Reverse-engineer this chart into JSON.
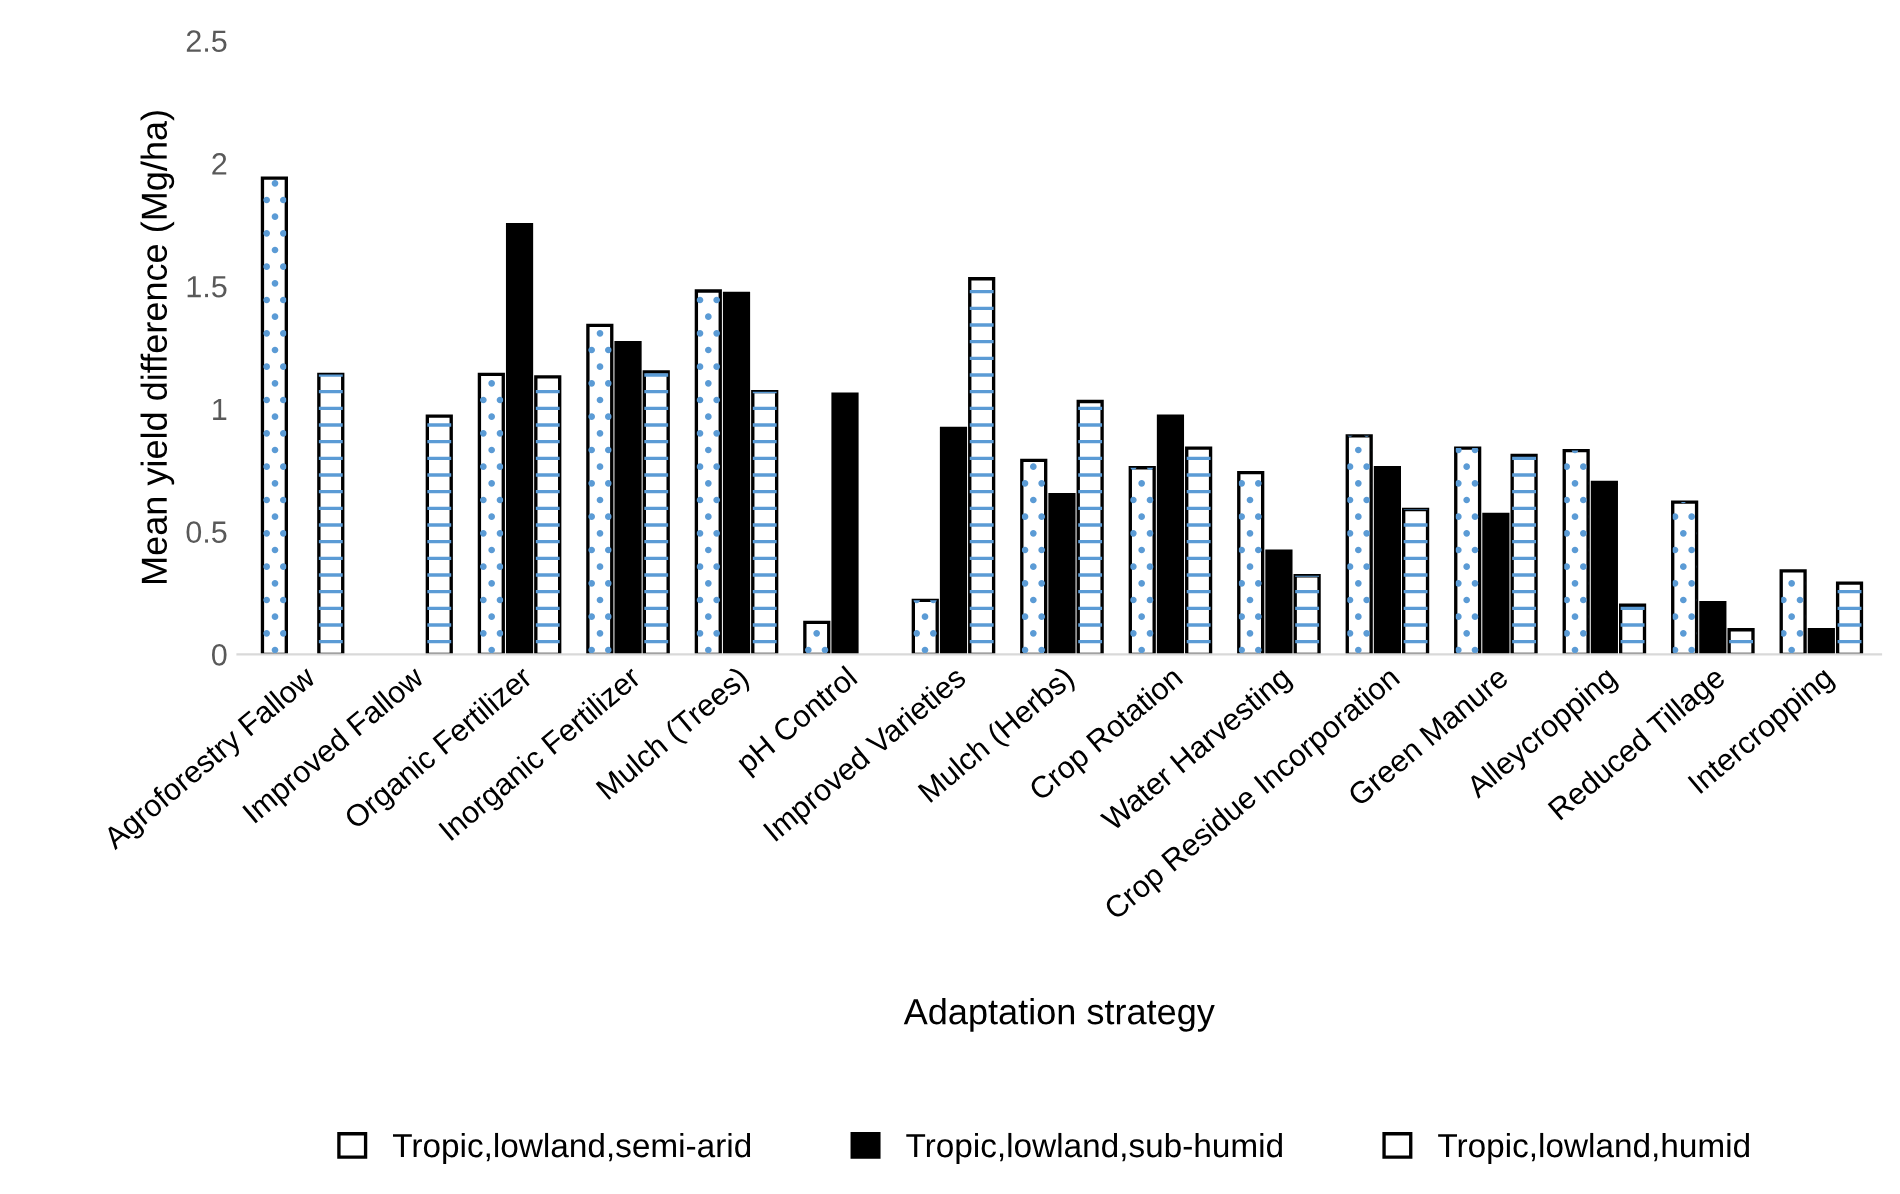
{
  "chart_data": {
    "type": "bar",
    "xlabel": "Adaptation strategy",
    "ylabel": "Mean yield difference (Mg/ha)",
    "categories": [
      "Agroforestry Fallow",
      "Improved Fallow",
      "Organic Fertilizer",
      "Inorganic Fertilizer",
      "Mulch (Trees)",
      "pH Control",
      "Improved Varieties",
      "Mulch (Herbs)",
      "Crop Rotation",
      "Water Harvesting",
      "Crop Residue Incorporation",
      "Green Manure",
      "Alleycropping",
      "Reduced Tillage",
      "Intercropping"
    ],
    "series": [
      {
        "name": "Tropic,lowland,semi-arid",
        "color": "#ffffff",
        "values": [
          1.94,
          null,
          1.14,
          1.34,
          1.48,
          0.13,
          0.22,
          0.79,
          0.76,
          0.74,
          0.89,
          0.84,
          0.83,
          0.62,
          0.34
        ]
      },
      {
        "name": "Tropic,lowland,sub-humid",
        "color": "#000000",
        "values": [
          null,
          null,
          1.75,
          1.27,
          1.47,
          1.06,
          0.92,
          0.65,
          0.97,
          0.42,
          0.76,
          0.57,
          0.7,
          0.21,
          0.1
        ]
      },
      {
        "name": "Tropic,lowland,humid",
        "color": "#ffffff",
        "values": [
          1.14,
          0.97,
          1.13,
          1.15,
          1.07,
          null,
          1.53,
          1.03,
          0.84,
          0.32,
          0.59,
          0.81,
          0.2,
          0.1,
          0.29
        ]
      }
    ],
    "ylim": [
      0,
      2.5
    ],
    "yticks": [
      0,
      0.5,
      1,
      1.5,
      2,
      2.5
    ],
    "grid": false,
    "legend": "bottom"
  }
}
